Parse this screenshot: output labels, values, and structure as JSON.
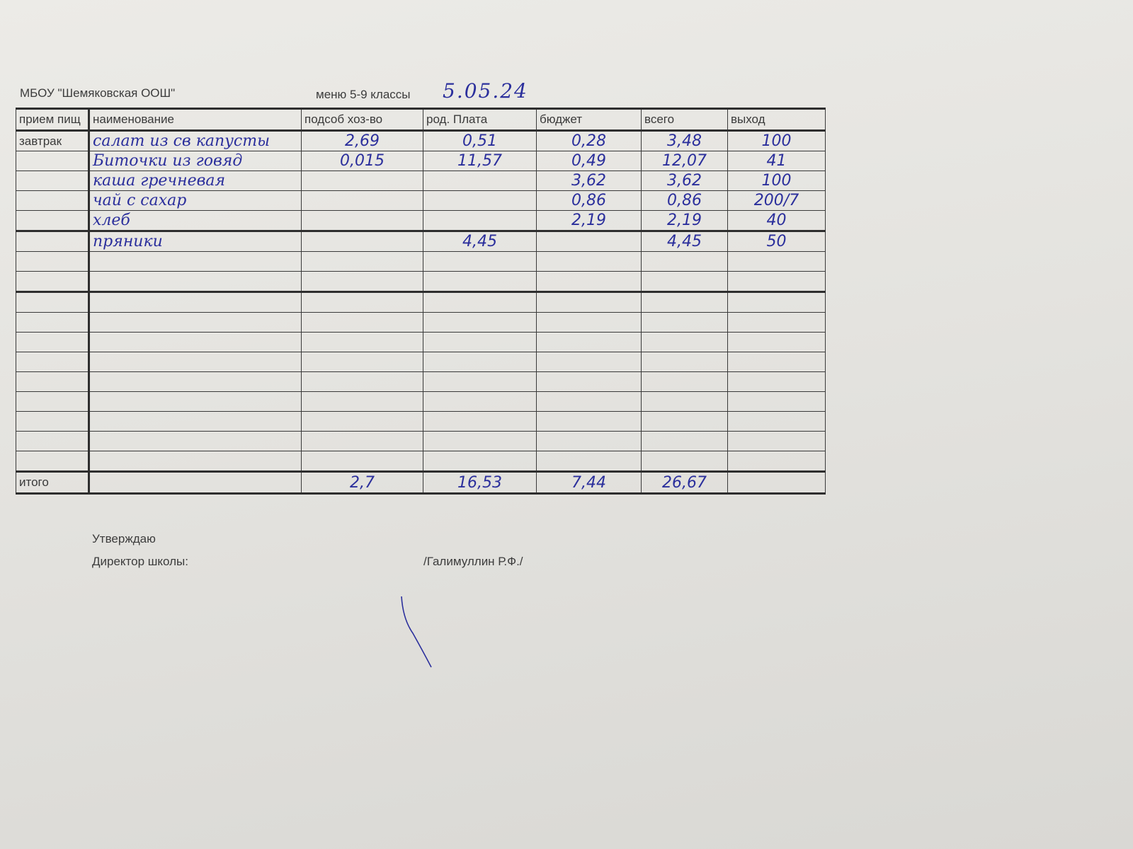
{
  "header": {
    "organization": "МБОУ \"Шемяковская ООШ\"",
    "menu_label": "меню 5-9 классы",
    "date": "5.05.24"
  },
  "table": {
    "columns": [
      "прием пищ",
      "наименование",
      "подсоб хоз-во",
      "род. Плата",
      "бюджет",
      "всего",
      "выход"
    ],
    "rows": [
      [
        "завтрак",
        "салат из св капусты",
        "2,69",
        "0,51",
        "0,28",
        "3,48",
        "100"
      ],
      [
        "",
        "Биточки из говяд",
        "0,015",
        "11,57",
        "0,49",
        "12,07",
        "41"
      ],
      [
        "",
        "каша гречневая",
        "",
        "",
        "3,62",
        "3,62",
        "100"
      ],
      [
        "",
        "чай с сахар",
        "",
        "",
        "0,86",
        "0,86",
        "200/7"
      ],
      [
        "",
        "хлеб",
        "",
        "",
        "2,19",
        "2,19",
        "40"
      ],
      [
        "",
        "пряники",
        "",
        "4,45",
        "",
        "4,45",
        "50"
      ],
      [
        "",
        "",
        "",
        "",
        "",
        "",
        ""
      ],
      [
        "",
        "",
        "",
        "",
        "",
        "",
        ""
      ],
      [
        "",
        "",
        "",
        "",
        "",
        "",
        ""
      ],
      [
        "",
        "",
        "",
        "",
        "",
        "",
        ""
      ],
      [
        "",
        "",
        "",
        "",
        "",
        "",
        ""
      ],
      [
        "",
        "",
        "",
        "",
        "",
        "",
        ""
      ],
      [
        "",
        "",
        "",
        "",
        "",
        "",
        ""
      ],
      [
        "",
        "",
        "",
        "",
        "",
        "",
        ""
      ],
      [
        "",
        "",
        "",
        "",
        "",
        "",
        ""
      ],
      [
        "",
        "",
        "",
        "",
        "",
        "",
        ""
      ],
      [
        "",
        "",
        "",
        "",
        "",
        "",
        ""
      ]
    ],
    "total": [
      "итого",
      "",
      "2,7",
      "16,53",
      "7,44",
      "26,67",
      ""
    ]
  },
  "footer": {
    "approve": "Утверждаю",
    "director_label": "Директор школы:",
    "director_name": "/Галимуллин Р.Ф./"
  },
  "colors": {
    "ink": "#2b2f9c",
    "paper": "#e6e5e1"
  }
}
